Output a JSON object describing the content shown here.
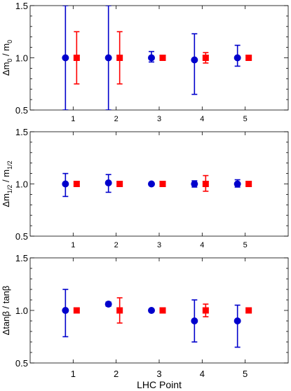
{
  "chart_data": [
    {
      "type": "scatter",
      "ylabel_main": "Δm",
      "ylabel_sub_num": "0",
      "ylabel_sep": " / m",
      "ylabel_sub_den": "0",
      "x": [
        1,
        2,
        3,
        4,
        5
      ],
      "xticklabels": [
        "1",
        "2",
        "3",
        "4",
        "5"
      ],
      "xlim": [
        0,
        6
      ],
      "ylim": [
        0.5,
        1.5
      ],
      "yticklabels": [
        "0.5",
        "1.0",
        "1.5"
      ],
      "series": [
        {
          "marker": "circle",
          "color": "#0000cc",
          "points": [
            {
              "x": 1,
              "y": 1.0,
              "lo": 0.5,
              "hi": 1.5
            },
            {
              "x": 2,
              "y": 1.0,
              "lo": 0.5,
              "hi": 1.5
            },
            {
              "x": 3,
              "y": 1.0,
              "lo": 0.96,
              "hi": 1.06
            },
            {
              "x": 4,
              "y": 0.98,
              "lo": 0.65,
              "hi": 1.23
            },
            {
              "x": 5,
              "y": 1.0,
              "lo": 0.92,
              "hi": 1.12
            }
          ]
        },
        {
          "marker": "square",
          "color": "#ff0000",
          "points": [
            {
              "x": 1,
              "y": 1.0,
              "lo": 0.75,
              "hi": 1.25
            },
            {
              "x": 2,
              "y": 1.0,
              "lo": 0.75,
              "hi": 1.25
            },
            {
              "x": 3,
              "y": 1.0,
              "lo": 0.985,
              "hi": 1.015
            },
            {
              "x": 4,
              "y": 1.0,
              "lo": 0.95,
              "hi": 1.05
            },
            {
              "x": 5,
              "y": 1.0,
              "lo": 0.98,
              "hi": 1.02
            }
          ]
        }
      ]
    },
    {
      "type": "scatter",
      "ylabel_main": "Δm",
      "ylabel_sub_num": "1/2",
      "ylabel_sep": " / m",
      "ylabel_sub_den": "1/2",
      "x": [
        1,
        2,
        3,
        4,
        5
      ],
      "xticklabels": [
        "1",
        "2",
        "3",
        "4",
        "5"
      ],
      "xlim": [
        0,
        6
      ],
      "ylim": [
        0.5,
        1.5
      ],
      "yticklabels": [
        "0.5",
        "1.0",
        "1.5"
      ],
      "series": [
        {
          "marker": "circle",
          "color": "#0000cc",
          "points": [
            {
              "x": 1,
              "y": 1.0,
              "lo": 0.88,
              "hi": 1.1
            },
            {
              "x": 2,
              "y": 1.01,
              "lo": 0.92,
              "hi": 1.09
            },
            {
              "x": 3,
              "y": 1.0,
              "lo": 0.99,
              "hi": 1.01
            },
            {
              "x": 4,
              "y": 1.0,
              "lo": 0.97,
              "hi": 1.03
            },
            {
              "x": 5,
              "y": 1.0,
              "lo": 0.97,
              "hi": 1.04
            }
          ]
        },
        {
          "marker": "square",
          "color": "#ff0000",
          "points": [
            {
              "x": 1,
              "y": 1.0,
              "lo": 0.995,
              "hi": 1.005
            },
            {
              "x": 2,
              "y": 1.0,
              "lo": 0.995,
              "hi": 1.005
            },
            {
              "x": 3,
              "y": 1.0,
              "lo": 0.995,
              "hi": 1.005
            },
            {
              "x": 4,
              "y": 1.0,
              "lo": 0.93,
              "hi": 1.08
            },
            {
              "x": 5,
              "y": 1.0,
              "lo": 0.995,
              "hi": 1.005
            }
          ]
        }
      ]
    },
    {
      "type": "scatter",
      "ylabel_main": "Δtanβ / tanβ",
      "ylabel_sub_num": "",
      "ylabel_sep": "",
      "ylabel_sub_den": "",
      "xlabel": "LHC Point",
      "x": [
        1,
        2,
        3,
        4,
        5
      ],
      "xticklabels": [
        "1",
        "2",
        "3",
        "4",
        "5"
      ],
      "xlim": [
        0,
        6
      ],
      "ylim": [
        0.5,
        1.5
      ],
      "yticklabels": [
        "0.5",
        "1.0",
        "1.5"
      ],
      "series": [
        {
          "marker": "circle",
          "color": "#0000cc",
          "points": [
            {
              "x": 1,
              "y": 1.0,
              "lo": 0.75,
              "hi": 1.2
            },
            {
              "x": 2,
              "y": 1.06,
              "lo": 1.04,
              "hi": 1.08
            },
            {
              "x": 3,
              "y": 1.0,
              "lo": 0.99,
              "hi": 1.01
            },
            {
              "x": 4,
              "y": 0.9,
              "lo": 0.7,
              "hi": 1.1
            },
            {
              "x": 5,
              "y": 0.9,
              "lo": 0.65,
              "hi": 1.05
            }
          ]
        },
        {
          "marker": "square",
          "color": "#ff0000",
          "points": [
            {
              "x": 1,
              "y": 1.0,
              "lo": 0.995,
              "hi": 1.005
            },
            {
              "x": 2,
              "y": 1.0,
              "lo": 0.88,
              "hi": 1.12
            },
            {
              "x": 3,
              "y": 1.0,
              "lo": 0.995,
              "hi": 1.005
            },
            {
              "x": 4,
              "y": 1.0,
              "lo": 0.94,
              "hi": 1.06
            },
            {
              "x": 5,
              "y": 1.0,
              "lo": 0.995,
              "hi": 1.005
            }
          ]
        }
      ]
    }
  ]
}
